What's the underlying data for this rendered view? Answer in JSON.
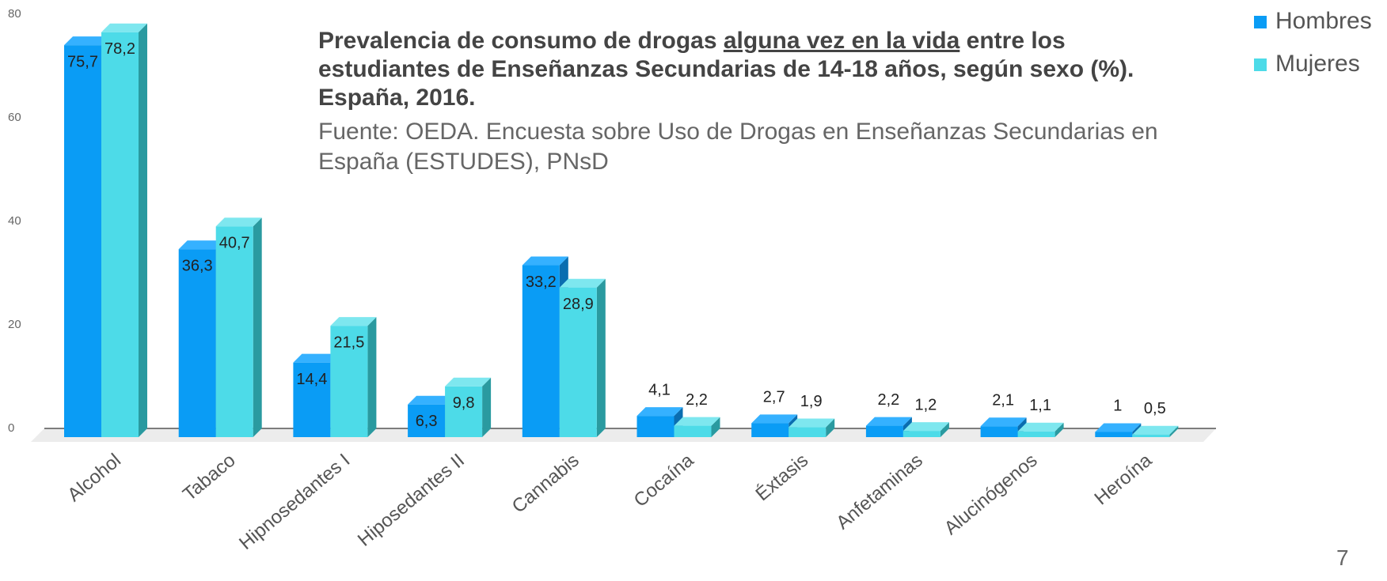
{
  "chart_data": {
    "type": "bar3d",
    "title": [
      "Prevalencia de consumo de drogas ",
      "alguna vez en la vida",
      " entre los estudiantes de Enseñanzas Secundarias de 14-18 años, según sexo (%). España, 2016."
    ],
    "subtitle": "Fuente: OEDA. Encuesta sobre Uso de Drogas en Enseñanzas Secundarias en España (ESTUDES), PNsD",
    "categories": [
      "Alcohol",
      "Tabaco",
      "Hipnosedantes I",
      "Hiposedantes II",
      "Cannabis",
      "Cocaína",
      "Éxtasis",
      "Anfetaminas",
      "Alucinógenos",
      "Heroína"
    ],
    "series": [
      {
        "name": "Hombres",
        "color": "#0a9cf5",
        "values": [
          75.7,
          36.3,
          14.4,
          6.3,
          33.2,
          4.1,
          2.7,
          2.2,
          2.1,
          1
        ],
        "value_labels": [
          "75,7",
          "36,3",
          "14,4",
          "6,3",
          "33,2",
          "4,1",
          "2,7",
          "2,2",
          "2,1",
          "1"
        ]
      },
      {
        "name": "Mujeres",
        "color": "#4ddbe8",
        "values": [
          78.2,
          40.7,
          21.5,
          9.8,
          28.9,
          2.2,
          1.9,
          1.2,
          1.1,
          0.5
        ],
        "value_labels": [
          "78,2",
          "40,7",
          "21,5",
          "9,8",
          "28,9",
          "2,2",
          "1,9",
          "1,2",
          "1,1",
          "0,5"
        ]
      }
    ],
    "ylim": [
      0,
      80
    ],
    "yticks": [
      0,
      20,
      40,
      60,
      80
    ],
    "grid": false,
    "legend": "top-right"
  },
  "page_number": "7"
}
